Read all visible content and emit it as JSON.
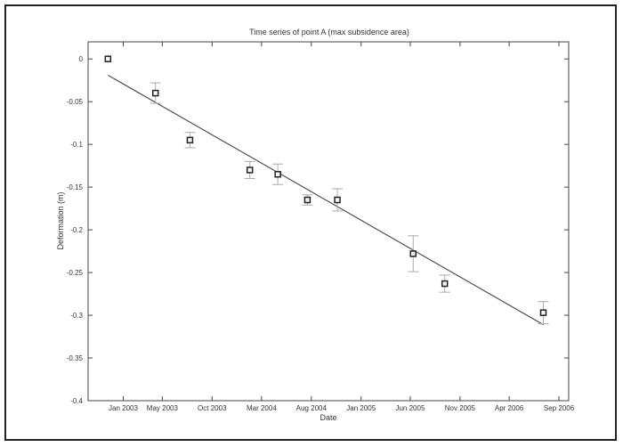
{
  "chart_data": {
    "type": "scatter",
    "title": "Time series of point A (max subsidence area)",
    "xlabel": "Date",
    "ylabel": "Deformation (m)",
    "x_ticks": [
      "Jan 2003",
      "May 2003",
      "Oct 2003",
      "Mar 2004",
      "Aug 2004",
      "Jan 2005",
      "Jun 2005",
      "Nov 2005",
      "Apr 2006",
      "Sep 2006"
    ],
    "y_ticks": [
      "0",
      "-0.05",
      "-0.1",
      "-0.15",
      "-0.2",
      "-0.25",
      "-0.3",
      "-0.35",
      "-0.4"
    ],
    "ylim": [
      -0.4,
      0.02
    ],
    "xlim": [
      "2002-09-15",
      "2006-10-01"
    ],
    "grid": false,
    "series": [
      {
        "type": "scatter_errorbar",
        "points": [
          {
            "x": "2002-11-15",
            "y": 0.0,
            "err": 0.0
          },
          {
            "x": "2003-04-10",
            "y": -0.04,
            "err": 0.012
          },
          {
            "x": "2003-07-25",
            "y": -0.095,
            "err": 0.009
          },
          {
            "x": "2004-01-25",
            "y": -0.13,
            "err": 0.01
          },
          {
            "x": "2004-04-20",
            "y": -0.135,
            "err": 0.012
          },
          {
            "x": "2004-07-20",
            "y": -0.165,
            "err": 0.006
          },
          {
            "x": "2004-10-20",
            "y": -0.165,
            "err": 0.013
          },
          {
            "x": "2005-06-10",
            "y": -0.228,
            "err": 0.021
          },
          {
            "x": "2005-09-15",
            "y": -0.263,
            "err": 0.01
          },
          {
            "x": "2006-07-15",
            "y": -0.297,
            "err": 0.013
          }
        ]
      },
      {
        "type": "line",
        "points": [
          {
            "x": "2002-11-15",
            "y": -0.019
          },
          {
            "x": "2006-07-15",
            "y": -0.311
          }
        ]
      }
    ]
  }
}
